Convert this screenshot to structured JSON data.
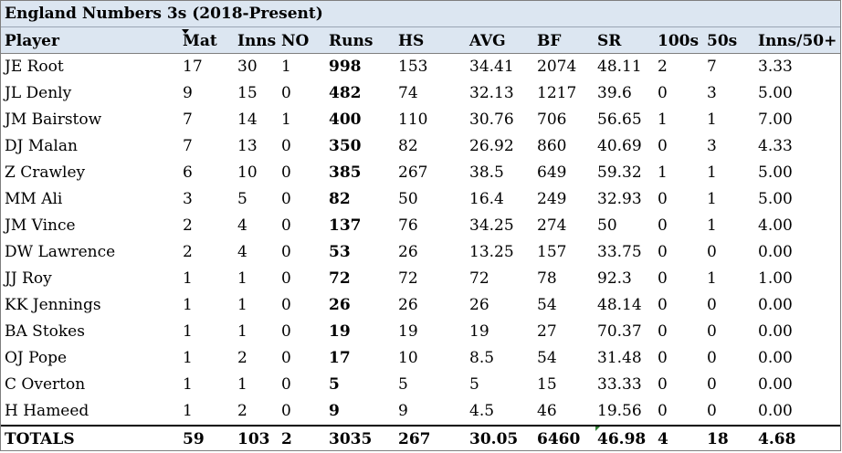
{
  "title": "England Numbers 3s (2018-Present)",
  "columns": [
    "Player",
    "Mat",
    "Inns",
    "NO",
    "Runs",
    "HS",
    "AVG",
    "BF",
    "SR",
    "100s",
    "50s",
    "Inns/50+"
  ],
  "rows": [
    [
      "JE Root",
      "17",
      "30",
      "1",
      "998",
      "153",
      "34.41",
      "2074",
      "48.11",
      "2",
      "7",
      "3.33"
    ],
    [
      "JL Denly",
      "9",
      "15",
      "0",
      "482",
      "74",
      "32.13",
      "1217",
      "39.6",
      "0",
      "3",
      "5.00"
    ],
    [
      "JM Bairstow",
      "7",
      "14",
      "1",
      "400",
      "110",
      "30.76",
      "706",
      "56.65",
      "1",
      "1",
      "7.00"
    ],
    [
      "DJ Malan",
      "7",
      "13",
      "0",
      "350",
      "82",
      "26.92",
      "860",
      "40.69",
      "0",
      "3",
      "4.33"
    ],
    [
      "Z Crawley",
      "6",
      "10",
      "0",
      "385",
      "267",
      "38.5",
      "649",
      "59.32",
      "1",
      "1",
      "5.00"
    ],
    [
      "MM Ali",
      "3",
      "5",
      "0",
      "82",
      "50",
      "16.4",
      "249",
      "32.93",
      "0",
      "1",
      "5.00"
    ],
    [
      "JM Vince",
      "2",
      "4",
      "0",
      "137",
      "76",
      "34.25",
      "274",
      "50",
      "0",
      "1",
      "4.00"
    ],
    [
      "DW Lawrence",
      "2",
      "4",
      "0",
      "53",
      "26",
      "13.25",
      "157",
      "33.75",
      "0",
      "0",
      "0.00"
    ],
    [
      "JJ Roy",
      "1",
      "1",
      "0",
      "72",
      "72",
      "72",
      "78",
      "92.3",
      "0",
      "1",
      "1.00"
    ],
    [
      "KK Jennings",
      "1",
      "1",
      "0",
      "26",
      "26",
      "26",
      "54",
      "48.14",
      "0",
      "0",
      "0.00"
    ],
    [
      "BA Stokes",
      "1",
      "1",
      "0",
      "19",
      "19",
      "19",
      "27",
      "70.37",
      "0",
      "0",
      "0.00"
    ],
    [
      "OJ Pope",
      "1",
      "2",
      "0",
      "17",
      "10",
      "8.5",
      "54",
      "31.48",
      "0",
      "0",
      "0.00"
    ],
    [
      "C Overton",
      "1",
      "1",
      "0",
      "5",
      "5",
      "5",
      "15",
      "33.33",
      "0",
      "0",
      "0.00"
    ],
    [
      "H Hameed",
      "1",
      "2",
      "0",
      "9",
      "9",
      "4.5",
      "46",
      "19.56",
      "0",
      "0",
      "0.00"
    ]
  ],
  "totals": [
    "TOTALS",
    "59",
    "103",
    "2",
    "3035",
    "267",
    "30.05",
    "6460",
    "46.98",
    "4",
    "18",
    "4.68"
  ]
}
